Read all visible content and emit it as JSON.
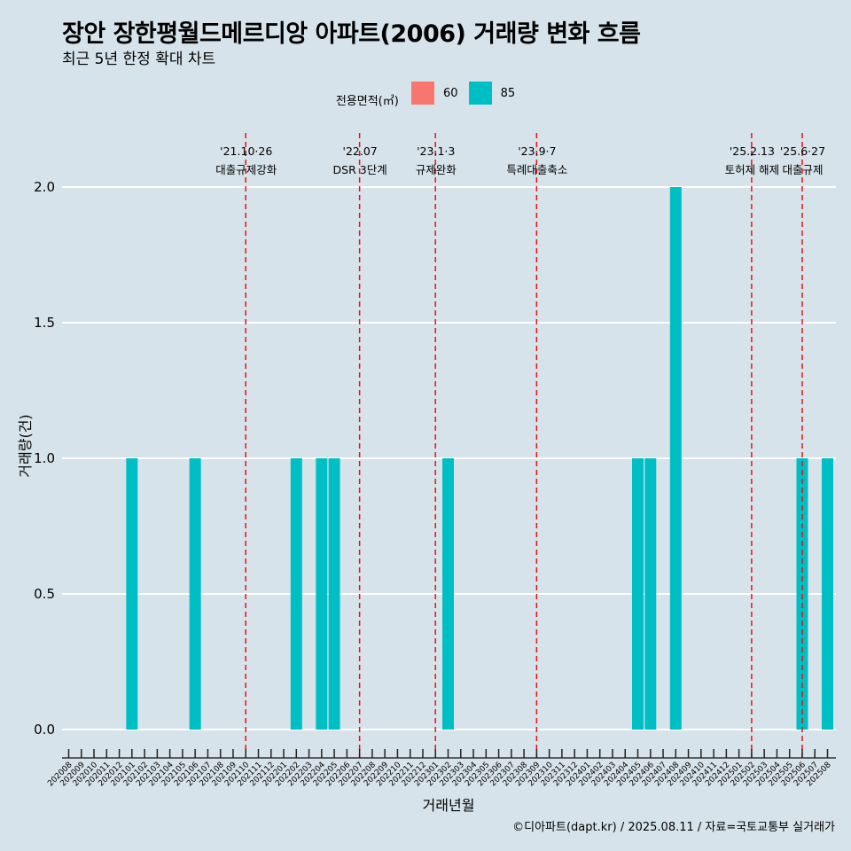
{
  "header": {
    "title": "장안 장한평월드메르디앙 아파트(2006) 거래량 변화 흐름",
    "subtitle": "최근 5년 한정 확대 차트"
  },
  "legend": {
    "title": "전용면적(㎡)",
    "items": [
      {
        "label": "60",
        "color": "#f8766d"
      },
      {
        "label": "85",
        "color": "#00bfc4"
      }
    ]
  },
  "caption": "©디아파트(dapt.kr) / 2025.08.11 / 자료=국토교통부 실거래가",
  "chart_data": {
    "type": "bar",
    "xlabel": "거래년월",
    "ylabel": "거래량(건)",
    "ylim": [
      -0.1,
      2.2
    ],
    "yticks": [
      "0.0",
      "0.5",
      "1.0",
      "1.5",
      "2.0"
    ],
    "grid": true,
    "legend_position": "top",
    "categories": [
      "202008",
      "202009",
      "202010",
      "202011",
      "202012",
      "202101",
      "202102",
      "202103",
      "202104",
      "202105",
      "202106",
      "202107",
      "202108",
      "202109",
      "202110",
      "202111",
      "202112",
      "202201",
      "202202",
      "202203",
      "202204",
      "202205",
      "202206",
      "202207",
      "202208",
      "202209",
      "202210",
      "202211",
      "202212",
      "202301",
      "202302",
      "202303",
      "202304",
      "202305",
      "202306",
      "202307",
      "202308",
      "202309",
      "202310",
      "202311",
      "202312",
      "202401",
      "202402",
      "202403",
      "202404",
      "202405",
      "202406",
      "202407",
      "202408",
      "202409",
      "202410",
      "202411",
      "202412",
      "202501",
      "202502",
      "202503",
      "202504",
      "202505",
      "202506",
      "202507",
      "202508"
    ],
    "series": [
      {
        "name": "60",
        "color": "#f8766d",
        "values": [
          0,
          0,
          0,
          0,
          0,
          0,
          0,
          0,
          0,
          0,
          0,
          0,
          0,
          0,
          0,
          0,
          0,
          0,
          0,
          0,
          0,
          0,
          0,
          0,
          0,
          0,
          0,
          0,
          0,
          0,
          0,
          0,
          0,
          0,
          0,
          0,
          0,
          0,
          0,
          0,
          0,
          0,
          0,
          0,
          0,
          0,
          0,
          0,
          0,
          0,
          0,
          0,
          0,
          0,
          0,
          0,
          0,
          0,
          0,
          0,
          0
        ]
      },
      {
        "name": "85",
        "color": "#00bfc4",
        "values": [
          0,
          0,
          0,
          0,
          0,
          1,
          0,
          0,
          0,
          0,
          1,
          0,
          0,
          0,
          0,
          0,
          0,
          0,
          1,
          0,
          1,
          1,
          0,
          0,
          0,
          0,
          0,
          0,
          0,
          0,
          1,
          0,
          0,
          0,
          0,
          0,
          0,
          0,
          0,
          0,
          0,
          0,
          0,
          0,
          0,
          1,
          1,
          0,
          2,
          0,
          0,
          0,
          0,
          0,
          0,
          0,
          0,
          0,
          1,
          0,
          1
        ]
      }
    ],
    "annotations": [
      {
        "x": "202110",
        "date": "'21.10·26",
        "text": "대출규제강화"
      },
      {
        "x": "202207",
        "date": "'22.07",
        "text": "DSR 3단계"
      },
      {
        "x": "202301",
        "date": "'23.1·3",
        "text": "규제완화"
      },
      {
        "x": "202309",
        "date": "'23.9·7",
        "text": "특례대출축소"
      },
      {
        "x": "202502",
        "date": "'25.2.13",
        "text": "토허제 해제"
      },
      {
        "x": "202506",
        "date": "'25.6·27",
        "text": "대출규제"
      }
    ]
  }
}
